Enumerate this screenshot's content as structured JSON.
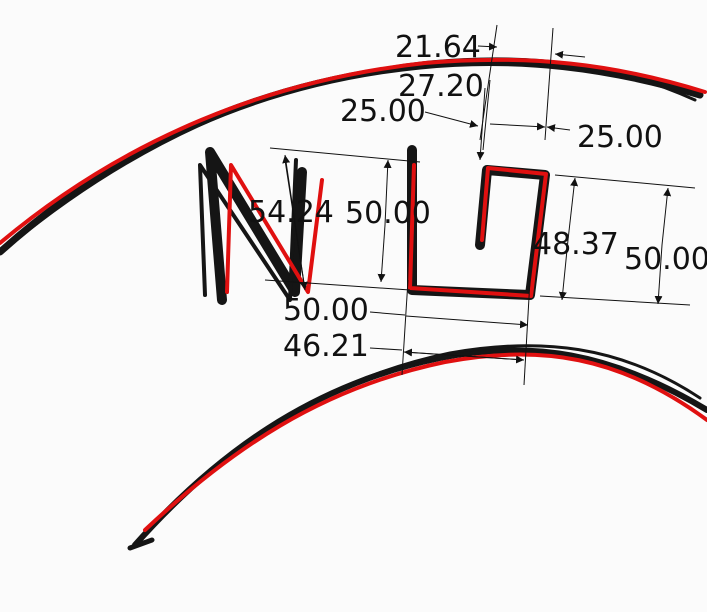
{
  "colors": {
    "fit_curve": "#e01010",
    "sketch_stroke": "#151515",
    "dimension": "#111111",
    "background": "#fbfbfb"
  },
  "dimensions": {
    "d_21_64": "21.64",
    "d_27_20": "27.20",
    "d_25_00_left": "25.00",
    "d_25_00_right": "25.00",
    "d_54_24": "54.24",
    "d_50_00_n_height": "50.00",
    "d_48_37": "48.37",
    "d_50_00_right_height": "50.00",
    "d_50_00_width": "50.00",
    "d_46_21": "46.21"
  }
}
